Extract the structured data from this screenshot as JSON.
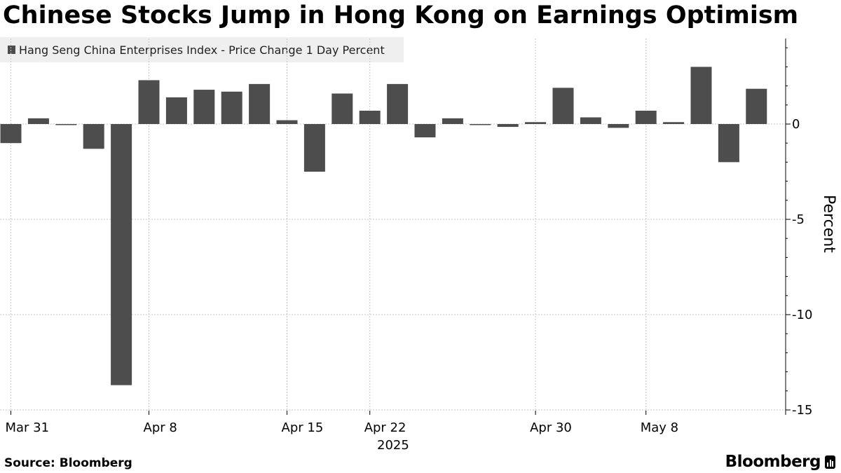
{
  "chart_data": {
    "type": "bar",
    "title": "Chinese Stocks Jump in Hong Kong on Earnings Optimism",
    "legend": [
      "Hang Seng China Enterprises Index - Price Change 1 Day Percent"
    ],
    "legend_placement": "top-left",
    "ylabel": "Percent",
    "xlabel": "",
    "ylim": [
      -15.5,
      4.5
    ],
    "y_ticks": [
      0,
      -5,
      -10,
      -15
    ],
    "grid": true,
    "x_tick_labels": [
      "Mar 31",
      "Apr 8",
      "Apr 15",
      "Apr 22",
      "Apr 30",
      "May 8"
    ],
    "x_year_label": "2025",
    "categories": [
      "2025-03-31",
      "2025-04-01",
      "2025-04-02",
      "2025-04-03",
      "2025-04-07",
      "2025-04-08",
      "2025-04-09",
      "2025-04-10",
      "2025-04-11",
      "2025-04-14",
      "2025-04-15",
      "2025-04-16",
      "2025-04-17",
      "2025-04-22",
      "2025-04-23",
      "2025-04-24",
      "2025-04-25",
      "2025-04-28",
      "2025-04-29",
      "2025-04-30",
      "2025-05-02",
      "2025-05-06",
      "2025-05-07",
      "2025-05-08",
      "2025-05-09",
      "2025-05-12",
      "2025-05-13",
      "2025-05-14"
    ],
    "series": [
      {
        "name": "Hang Seng China Enterprises Index - Price Change 1 Day Percent",
        "values": [
          -1.0,
          0.3,
          -0.05,
          -1.3,
          -13.7,
          2.3,
          1.4,
          1.8,
          1.7,
          2.1,
          0.2,
          -2.5,
          1.6,
          0.7,
          2.1,
          -0.7,
          0.3,
          0.0,
          -0.15,
          0.1,
          1.9,
          0.35,
          -0.2,
          0.7,
          0.1,
          3.0,
          -2.0,
          1.85
        ]
      }
    ],
    "colors": {
      "bar": "#4d4d4d",
      "grid": "#c8c8c8",
      "legend_bg": "#efefef"
    }
  },
  "footer": {
    "source": "Source: Bloomberg",
    "brand": "Bloomberg"
  }
}
